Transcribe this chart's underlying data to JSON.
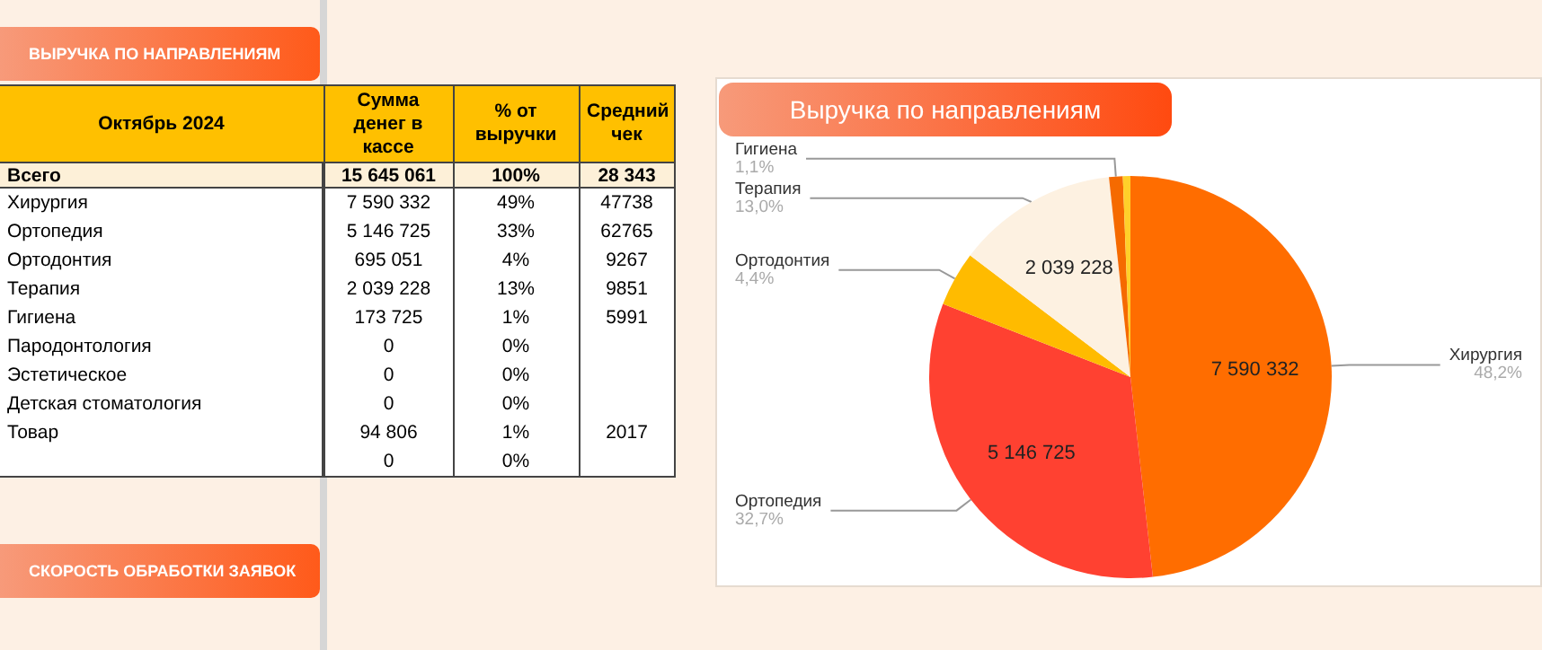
{
  "chart_data": [
    {
      "type": "other",
      "title": "Октябрь 2024",
      "categories": [
        "Всего",
        "Хирургия",
        "Ортопедия",
        "Ортодонтия",
        "Терапия",
        "Гигиена",
        "Пародонтология",
        "Эстетическое",
        "Детская стоматология",
        "Товар",
        null
      ],
      "annotations": [
        "Сумма денег в кассе",
        "% от выручки",
        "Средний чек",
        "15 645 061",
        "100%",
        "28 343",
        "7 590 332",
        "49%",
        "47738",
        "5 146 725",
        "33%",
        "62765",
        "695 051",
        "4%",
        "9267",
        "2 039 228",
        "13%",
        "9851",
        "173 725",
        "1%",
        "5991",
        "0",
        "0%",
        null,
        "0",
        "0%",
        null,
        "0",
        "0%",
        null,
        "94 806",
        "1%",
        "2017",
        "0",
        "0%",
        null,
        "ВЫРУЧКА ПО НАПРАВЛЕНИЯМ",
        "СКОРОСТЬ ОБРАБОТКИ ЗАЯВОК"
      ]
    },
    {
      "type": "pie",
      "title": "Выручка по направлениям",
      "categories": [
        "Хирургия",
        "Ортопедия",
        "Ортодонтия",
        "Терапия",
        "Гигиена",
        null
      ],
      "values": [
        7590332,
        5146725,
        695051,
        2039228,
        173725,
        94806
      ],
      "colors": [
        "#ff6d00",
        "#ff4131",
        "#ffbb00",
        "#fdf1e1",
        "#f56a00",
        "#ffd02a"
      ],
      "value_labels": [
        "7 590 332",
        "5 146 725",
        null,
        "2 039 228",
        null,
        null
      ],
      "annotations": [
        "48,2%",
        "32,7%",
        "4,4%",
        "13,0%",
        "1,1%"
      ]
    }
  ]
}
